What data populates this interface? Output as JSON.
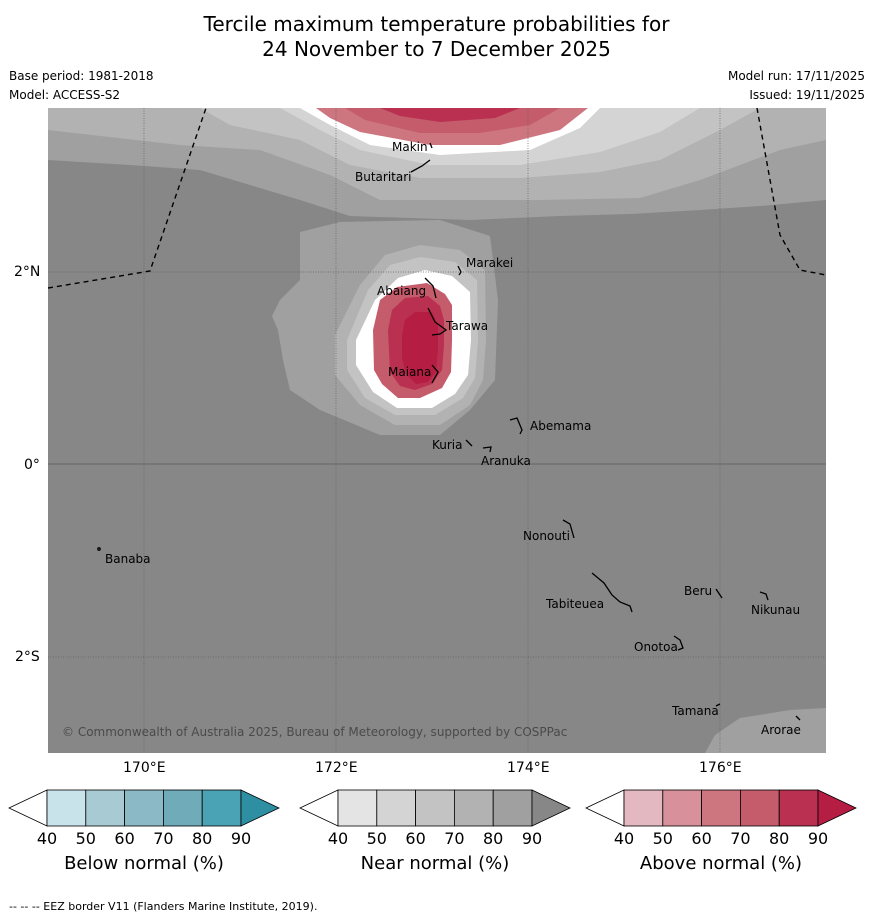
{
  "title_line1": "Tercile maximum temperature probabilities for",
  "title_line2": "24 November to 7 December 2025",
  "meta": {
    "base_period": "Base period: 1981-2018",
    "model": "Model: ACCESS-S2",
    "model_run": "Model run: 17/11/2025",
    "issued": "Issued: 19/11/2025"
  },
  "map": {
    "lon_ticks": [
      "170°E",
      "172°E",
      "174°E",
      "176°E"
    ],
    "lat_ticks": [
      "2°N",
      "0°",
      "2°S"
    ],
    "copyright": "© Commonwealth of Australia 2025, Bureau of Meteorology, supported by COSPPac",
    "places": [
      {
        "name": "Makin"
      },
      {
        "name": "Butaritari"
      },
      {
        "name": "Marakei"
      },
      {
        "name": "Abaiang"
      },
      {
        "name": "Tarawa"
      },
      {
        "name": "Maiana"
      },
      {
        "name": "Abemama"
      },
      {
        "name": "Kuria"
      },
      {
        "name": "Aranuka"
      },
      {
        "name": "Nonouti"
      },
      {
        "name": "Banaba"
      },
      {
        "name": "Beru"
      },
      {
        "name": "Tabiteuea"
      },
      {
        "name": "Nikunau"
      },
      {
        "name": "Onotoa"
      },
      {
        "name": "Tamana"
      },
      {
        "name": "Arorae"
      }
    ]
  },
  "colorbars": [
    {
      "label": "Below normal (%)",
      "ticks": [
        "40",
        "50",
        "60",
        "70",
        "80",
        "90"
      ],
      "colors": [
        "#ffffff",
        "#c9e3ea",
        "#a8cbd3",
        "#8bbac6",
        "#6fabb9",
        "#4aa3b4",
        "#2e8fa3"
      ]
    },
    {
      "label": "Near normal (%)",
      "ticks": [
        "40",
        "50",
        "60",
        "70",
        "80",
        "90"
      ],
      "colors": [
        "#ffffff",
        "#e4e4e4",
        "#d4d4d4",
        "#c3c3c3",
        "#b2b2b2",
        "#a0a0a0",
        "#878787"
      ]
    },
    {
      "label": "Above normal (%)",
      "ticks": [
        "40",
        "50",
        "60",
        "70",
        "80",
        "90"
      ],
      "colors": [
        "#ffffff",
        "#e3b8c0",
        "#d8919a",
        "#cd7680",
        "#c45c6b",
        "#b93050",
        "#b51e42"
      ]
    }
  ],
  "footer": "--  --  -- EEZ border V11 (Flanders Marine Institute, 2019)."
}
